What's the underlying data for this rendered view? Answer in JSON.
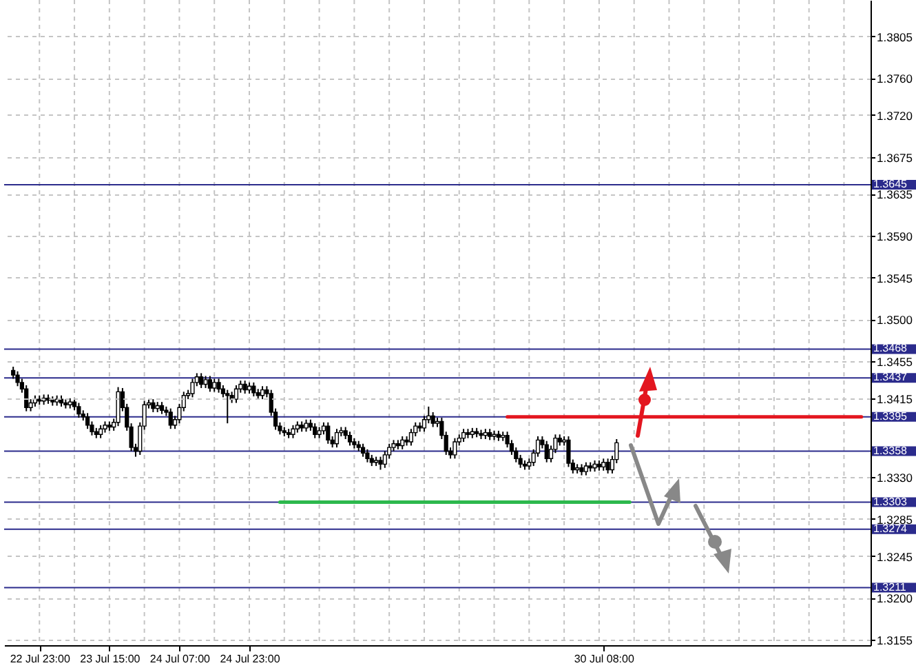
{
  "chart_data": {
    "type": "candlestick",
    "categories": [
      null,
      null,
      null,
      null,
      null,
      null,
      "22 Jul 23:00",
      null,
      null,
      null,
      null,
      null,
      null,
      null,
      null,
      null,
      null,
      null,
      null,
      null,
      null,
      null,
      "23 Jul 15:00",
      null,
      null,
      null,
      null,
      null,
      null,
      null,
      null,
      null,
      null,
      null,
      null,
      null,
      null,
      null,
      "24 Jul 07:00",
      null,
      null,
      null,
      null,
      null,
      null,
      null,
      null,
      null,
      null,
      null,
      null,
      null,
      null,
      null,
      "24 Jul 23:00",
      null,
      null,
      null,
      null,
      null,
      null,
      null,
      null,
      null,
      null,
      null,
      null,
      null,
      null,
      null,
      null,
      null,
      null,
      null,
      null,
      null,
      null,
      null,
      null,
      null,
      null,
      null,
      null,
      null,
      null,
      null,
      null,
      null,
      null,
      null,
      null,
      null,
      null,
      null,
      null,
      null,
      null,
      null,
      null,
      null,
      null,
      null,
      null,
      null,
      null,
      null,
      null,
      null,
      null,
      null,
      null,
      null,
      null,
      null,
      null,
      null,
      null,
      null,
      null,
      null,
      null,
      null,
      null,
      null,
      null,
      null,
      null,
      null,
      null,
      null,
      null,
      null,
      null,
      null,
      null,
      "30 Jul 08:00",
      null,
      null,
      null,
      null,
      null,
      null,
      null,
      null,
      null,
      null,
      null,
      null,
      null,
      null,
      null,
      null,
      null,
      null,
      null,
      null,
      null,
      null,
      null,
      null,
      null,
      null,
      null,
      null,
      null,
      null,
      null,
      null,
      null,
      null,
      null,
      null,
      null,
      null,
      null,
      null,
      null,
      null,
      null,
      null,
      null,
      null,
      null,
      null,
      null,
      null,
      null,
      null,
      null,
      null,
      null,
      null,
      null,
      null,
      null
    ],
    "ohlc": [
      [
        1.3445,
        1.3449,
        1.3436,
        1.344
      ],
      [
        1.344,
        1.3444,
        1.3428,
        1.3432
      ],
      [
        1.3432,
        1.3436,
        1.3421,
        1.3425
      ],
      [
        1.3425,
        1.3429,
        1.3401,
        1.3405
      ],
      [
        1.3405,
        1.3414,
        1.3401,
        1.341
      ],
      [
        1.341,
        1.3418,
        1.3406,
        1.3414
      ],
      [
        1.3414,
        1.3418,
        1.3408,
        1.3412
      ],
      [
        1.3412,
        1.3419,
        1.3408,
        1.3415
      ],
      [
        1.3415,
        1.3419,
        1.3409,
        1.3413
      ],
      [
        1.3413,
        1.3417,
        1.3407,
        1.3411
      ],
      [
        1.3411,
        1.3418,
        1.3407,
        1.3414
      ],
      [
        1.3414,
        1.3418,
        1.3406,
        1.341
      ],
      [
        1.341,
        1.3414,
        1.3404,
        1.3408
      ],
      [
        1.3408,
        1.3415,
        1.3404,
        1.3411
      ],
      [
        1.3411,
        1.3415,
        1.3402,
        1.3406
      ],
      [
        1.3406,
        1.341,
        1.3394,
        1.3398
      ],
      [
        1.3398,
        1.3402,
        1.3391,
        1.3395
      ],
      [
        1.3395,
        1.3399,
        1.3382,
        1.3386
      ],
      [
        1.3386,
        1.339,
        1.3375,
        1.3379
      ],
      [
        1.3379,
        1.3383,
        1.3372,
        1.3376
      ],
      [
        1.3376,
        1.3386,
        1.3372,
        1.3382
      ],
      [
        1.3382,
        1.339,
        1.3378,
        1.3386
      ],
      [
        1.3386,
        1.339,
        1.338,
        1.3384
      ],
      [
        1.3384,
        1.3393,
        1.338,
        1.3389
      ],
      [
        1.3389,
        1.3427,
        1.3385,
        1.3422
      ],
      [
        1.3422,
        1.3426,
        1.3401,
        1.3405
      ],
      [
        1.3405,
        1.3409,
        1.338,
        1.3384
      ],
      [
        1.3384,
        1.3388,
        1.3358,
        1.3362
      ],
      [
        1.3362,
        1.3366,
        1.3352,
        1.3358
      ],
      [
        1.3358,
        1.3389,
        1.3354,
        1.3385
      ],
      [
        1.3385,
        1.3412,
        1.3381,
        1.3408
      ],
      [
        1.3408,
        1.3414,
        1.3404,
        1.341
      ],
      [
        1.341,
        1.3414,
        1.34,
        1.3404
      ],
      [
        1.3404,
        1.3411,
        1.34,
        1.3407
      ],
      [
        1.3407,
        1.3411,
        1.3398,
        1.3402
      ],
      [
        1.3402,
        1.3406,
        1.3396,
        1.34
      ],
      [
        1.34,
        1.3404,
        1.3382,
        1.3386
      ],
      [
        1.3386,
        1.3396,
        1.3382,
        1.3392
      ],
      [
        1.3392,
        1.3409,
        1.3388,
        1.3405
      ],
      [
        1.3405,
        1.3422,
        1.3401,
        1.3418
      ],
      [
        1.3418,
        1.3424,
        1.3414,
        1.342
      ],
      [
        1.342,
        1.3436,
        1.3416,
        1.3432
      ],
      [
        1.3432,
        1.3442,
        1.3428,
        1.3438
      ],
      [
        1.3438,
        1.3442,
        1.3426,
        1.343
      ],
      [
        1.343,
        1.3439,
        1.3426,
        1.3435
      ],
      [
        1.3435,
        1.3439,
        1.3422,
        1.3426
      ],
      [
        1.3426,
        1.3436,
        1.3422,
        1.3432
      ],
      [
        1.3432,
        1.3436,
        1.3421,
        1.3425
      ],
      [
        1.3425,
        1.3429,
        1.3416,
        1.342
      ],
      [
        1.342,
        1.3424,
        1.3388,
        1.3418
      ],
      [
        1.3418,
        1.3422,
        1.341,
        1.3414
      ],
      [
        1.3414,
        1.3429,
        1.341,
        1.3425
      ],
      [
        1.3425,
        1.3434,
        1.3421,
        1.343
      ],
      [
        1.343,
        1.3434,
        1.342,
        1.3424
      ],
      [
        1.3424,
        1.3432,
        1.342,
        1.3428
      ],
      [
        1.3428,
        1.3432,
        1.3417,
        1.3421
      ],
      [
        1.3421,
        1.3425,
        1.3414,
        1.3418
      ],
      [
        1.3418,
        1.3428,
        1.3414,
        1.3424
      ],
      [
        1.3424,
        1.3428,
        1.3416,
        1.342
      ],
      [
        1.342,
        1.3424,
        1.3396,
        1.34
      ],
      [
        1.34,
        1.3404,
        1.3381,
        1.3385
      ],
      [
        1.3385,
        1.3389,
        1.3376,
        1.338
      ],
      [
        1.338,
        1.3384,
        1.3374,
        1.3378
      ],
      [
        1.3378,
        1.3382,
        1.3372,
        1.3376
      ],
      [
        1.3376,
        1.3386,
        1.3372,
        1.3382
      ],
      [
        1.3382,
        1.339,
        1.3378,
        1.3386
      ],
      [
        1.3386,
        1.339,
        1.3379,
        1.3383
      ],
      [
        1.3383,
        1.3392,
        1.3379,
        1.3388
      ],
      [
        1.3388,
        1.3392,
        1.338,
        1.3384
      ],
      [
        1.3384,
        1.3388,
        1.3372,
        1.3376
      ],
      [
        1.3376,
        1.3384,
        1.3372,
        1.338
      ],
      [
        1.338,
        1.3389,
        1.3376,
        1.3385
      ],
      [
        1.3385,
        1.3389,
        1.3366,
        1.337
      ],
      [
        1.337,
        1.3374,
        1.3362,
        1.3366
      ],
      [
        1.3366,
        1.3382,
        1.3362,
        1.3378
      ],
      [
        1.3378,
        1.3384,
        1.3374,
        1.338
      ],
      [
        1.338,
        1.3384,
        1.3371,
        1.3375
      ],
      [
        1.3375,
        1.3379,
        1.3364,
        1.3368
      ],
      [
        1.3368,
        1.3372,
        1.3361,
        1.3365
      ],
      [
        1.3365,
        1.3369,
        1.3358,
        1.3362
      ],
      [
        1.3362,
        1.3366,
        1.3352,
        1.3356
      ],
      [
        1.3356,
        1.336,
        1.3346,
        1.335
      ],
      [
        1.335,
        1.3354,
        1.3342,
        1.3346
      ],
      [
        1.3346,
        1.3352,
        1.3342,
        1.3348
      ],
      [
        1.3348,
        1.3352,
        1.3338,
        1.3344
      ],
      [
        1.3344,
        1.3358,
        1.334,
        1.3354
      ],
      [
        1.3354,
        1.3366,
        1.335,
        1.3362
      ],
      [
        1.3362,
        1.337,
        1.3358,
        1.3366
      ],
      [
        1.3366,
        1.337,
        1.336,
        1.3364
      ],
      [
        1.3364,
        1.3374,
        1.336,
        1.337
      ],
      [
        1.337,
        1.3374,
        1.3364,
        1.3368
      ],
      [
        1.3368,
        1.3382,
        1.3364,
        1.3378
      ],
      [
        1.3378,
        1.3389,
        1.3374,
        1.3385
      ],
      [
        1.3385,
        1.3389,
        1.3379,
        1.3383
      ],
      [
        1.3383,
        1.3396,
        1.3379,
        1.3392
      ],
      [
        1.3392,
        1.3406,
        1.3388,
        1.3396
      ],
      [
        1.3396,
        1.34,
        1.3384,
        1.3388
      ],
      [
        1.3388,
        1.3394,
        1.3384,
        1.339
      ],
      [
        1.339,
        1.3394,
        1.3371,
        1.3375
      ],
      [
        1.3375,
        1.3379,
        1.3354,
        1.3358
      ],
      [
        1.3358,
        1.3362,
        1.335,
        1.3354
      ],
      [
        1.3354,
        1.3372,
        1.335,
        1.3368
      ],
      [
        1.3368,
        1.3376,
        1.3364,
        1.3372
      ],
      [
        1.3372,
        1.3382,
        1.3368,
        1.3378
      ],
      [
        1.3378,
        1.3382,
        1.3372,
        1.3376
      ],
      [
        1.3376,
        1.3383,
        1.3372,
        1.3379
      ],
      [
        1.3379,
        1.3383,
        1.3373,
        1.3377
      ],
      [
        1.3377,
        1.3381,
        1.3371,
        1.3375
      ],
      [
        1.3375,
        1.3382,
        1.3371,
        1.3378
      ],
      [
        1.3378,
        1.3382,
        1.337,
        1.3374
      ],
      [
        1.3374,
        1.338,
        1.337,
        1.3376
      ],
      [
        1.3376,
        1.338,
        1.3369,
        1.3373
      ],
      [
        1.3373,
        1.3379,
        1.3369,
        1.3375
      ],
      [
        1.3375,
        1.3379,
        1.3362,
        1.3366
      ],
      [
        1.3366,
        1.337,
        1.3354,
        1.3358
      ],
      [
        1.3358,
        1.3362,
        1.3346,
        1.335
      ],
      [
        1.335,
        1.3354,
        1.334,
        1.3344
      ],
      [
        1.3344,
        1.3348,
        1.3338,
        1.3342
      ],
      [
        1.3342,
        1.335,
        1.3338,
        1.3346
      ],
      [
        1.3346,
        1.336,
        1.3342,
        1.3356
      ],
      [
        1.3356,
        1.3374,
        1.3352,
        1.337
      ],
      [
        1.337,
        1.3374,
        1.3361,
        1.3365
      ],
      [
        1.3365,
        1.3369,
        1.3346,
        1.335
      ],
      [
        1.335,
        1.3364,
        1.3346,
        1.336
      ],
      [
        1.336,
        1.3376,
        1.3356,
        1.3372
      ],
      [
        1.3372,
        1.3376,
        1.3364,
        1.3368
      ],
      [
        1.3368,
        1.3374,
        1.3364,
        1.337
      ],
      [
        1.337,
        1.3374,
        1.3341,
        1.3345
      ],
      [
        1.3345,
        1.3349,
        1.3334,
        1.3338
      ],
      [
        1.3338,
        1.3344,
        1.3334,
        1.334
      ],
      [
        1.334,
        1.3344,
        1.3332,
        1.3336
      ],
      [
        1.3336,
        1.3346,
        1.3332,
        1.3342
      ],
      [
        1.3342,
        1.3346,
        1.3336,
        1.334
      ],
      [
        1.334,
        1.3348,
        1.3336,
        1.3344
      ],
      [
        1.3344,
        1.3348,
        1.3337,
        1.3341
      ],
      [
        1.3341,
        1.335,
        1.3337,
        1.3346
      ],
      [
        1.3346,
        1.335,
        1.3334,
        1.3338
      ],
      [
        1.3338,
        1.3353,
        1.3334,
        1.3349
      ],
      [
        1.3349,
        1.3371,
        1.3345,
        1.3367
      ],
      null,
      null,
      null,
      null,
      null,
      null,
      null,
      null,
      null,
      null,
      null,
      null,
      null,
      null,
      null,
      null,
      null,
      null,
      null,
      null,
      null,
      null,
      null,
      null,
      null,
      null,
      null,
      null,
      null,
      null,
      null,
      null,
      null,
      null,
      null,
      null,
      null,
      null,
      null,
      null,
      null,
      null,
      null,
      null,
      null,
      null,
      null,
      null,
      null,
      null,
      null,
      null,
      null,
      null,
      null,
      null
    ],
    "series": [
      {
        "type": "line",
        "color": "#2db84d",
        "values": [
          null,
          null,
          null,
          null,
          null,
          null,
          null,
          null,
          null,
          null,
          null,
          null,
          null,
          null,
          null,
          null,
          null,
          null,
          null,
          null,
          null,
          null,
          null,
          null,
          null,
          null,
          null,
          null,
          null,
          null,
          null,
          null,
          null,
          null,
          null,
          null,
          null,
          null,
          null,
          null,
          null,
          null,
          null,
          null,
          null,
          null,
          null,
          null,
          null,
          null,
          null,
          null,
          null,
          null,
          null,
          null,
          null,
          null,
          null,
          null,
          null,
          1.3303,
          1.3303,
          1.3303,
          1.3303,
          1.3303,
          1.3303,
          1.3303,
          1.3303,
          1.3303,
          1.3303,
          1.3303,
          1.3303,
          1.3303,
          1.3303,
          1.3303,
          1.3303,
          1.3303,
          1.3303,
          1.3303,
          1.3303,
          1.3303,
          1.3303,
          1.3303,
          1.3303,
          1.3303,
          1.3303,
          1.3303,
          1.3303,
          1.3303,
          1.3303,
          1.3303,
          1.3303,
          1.3303,
          1.3303,
          1.3303,
          1.3303,
          1.3303,
          1.3303,
          1.3303,
          1.3303,
          1.3303,
          1.3303,
          1.3303,
          1.3303,
          1.3303,
          1.3303,
          1.3303,
          1.3303,
          1.3303,
          1.3303,
          1.3303,
          1.3303,
          1.3303,
          1.3303,
          1.3303,
          1.3303,
          1.3303,
          1.3303,
          1.3303,
          1.3303,
          1.3303,
          1.3303,
          1.3303,
          1.3303,
          1.3303,
          1.3303,
          1.3303,
          1.3303,
          1.3303,
          1.3303,
          1.3303,
          1.3303,
          1.3303,
          1.3303,
          1.3303,
          1.3303,
          1.3303,
          1.3303,
          1.3303,
          1.3303,
          1.3303,
          null,
          null,
          null,
          null,
          null,
          null,
          null,
          null,
          null,
          null,
          null,
          null,
          null,
          null,
          null,
          null,
          null,
          null,
          null,
          null,
          null,
          null,
          null,
          null,
          null,
          null,
          null,
          null,
          null,
          null,
          null,
          null,
          null,
          null,
          null,
          null,
          null,
          null,
          null,
          null,
          null,
          null,
          null,
          null,
          null,
          null,
          null,
          null,
          null,
          null,
          null,
          null,
          null
        ]
      },
      {
        "type": "line",
        "color": "#e3161f",
        "values": [
          null,
          null,
          null,
          null,
          null,
          null,
          null,
          null,
          null,
          null,
          null,
          null,
          null,
          null,
          null,
          null,
          null,
          null,
          null,
          null,
          null,
          null,
          null,
          null,
          null,
          null,
          null,
          null,
          null,
          null,
          null,
          null,
          null,
          null,
          null,
          null,
          null,
          null,
          null,
          null,
          null,
          null,
          null,
          null,
          null,
          null,
          null,
          null,
          null,
          null,
          null,
          null,
          null,
          null,
          null,
          null,
          null,
          null,
          null,
          null,
          null,
          null,
          null,
          null,
          null,
          null,
          null,
          null,
          null,
          null,
          null,
          null,
          null,
          null,
          null,
          null,
          null,
          null,
          null,
          null,
          null,
          null,
          null,
          null,
          null,
          null,
          null,
          null,
          null,
          null,
          null,
          null,
          null,
          null,
          null,
          null,
          null,
          null,
          null,
          null,
          null,
          null,
          null,
          null,
          null,
          null,
          null,
          null,
          null,
          null,
          null,
          null,
          null,
          1.3395,
          1.3395,
          1.3395,
          1.3395,
          1.3395,
          1.3395,
          1.3395,
          1.3395,
          1.3395,
          1.3395,
          1.3395,
          1.3395,
          1.3395,
          1.3395,
          1.3395,
          1.3395,
          1.3395,
          1.3395,
          1.3395,
          1.3395,
          1.3395,
          1.3395,
          1.3395,
          1.3395,
          1.3395,
          1.3395,
          1.3395,
          1.3395,
          1.3395,
          1.3395,
          1.3395,
          1.3395,
          1.3395,
          1.3395,
          1.3395,
          1.3395,
          1.3395,
          1.3395,
          1.3395,
          1.3395,
          1.3395,
          1.3395,
          1.3395,
          1.3395,
          1.3395,
          1.3395,
          1.3395,
          1.3395,
          1.3395,
          1.3395,
          1.3395,
          1.3395,
          1.3395,
          1.3395,
          1.3395,
          1.3395,
          1.3395,
          1.3395,
          1.3395,
          1.3395,
          1.3395,
          1.3395,
          1.3395,
          1.3395,
          1.3395,
          1.3395,
          1.3395,
          1.3395,
          1.3395,
          1.3395,
          1.3395,
          1.3395,
          1.3395,
          1.3395,
          1.3395,
          1.3395,
          1.3395,
          1.3395,
          1.3395,
          1.3395,
          1.3395,
          1.3395
        ]
      }
    ],
    "ref_lines": [
      {
        "axis": "y",
        "value": 1.3645,
        "label": "1.3645",
        "color": "#2b2b8c"
      },
      {
        "axis": "y",
        "value": 1.3468,
        "label": "1.3468",
        "color": "#2b2b8c"
      },
      {
        "axis": "y",
        "value": 1.3437,
        "label": "1.3437",
        "color": "#2b2b8c"
      },
      {
        "axis": "y",
        "value": 1.3395,
        "label": "1.3395",
        "color": "#2b2b8c"
      },
      {
        "axis": "y",
        "value": 1.3358,
        "label": "1.3358",
        "color": "#2b2b8c"
      },
      {
        "axis": "y",
        "value": 1.3303,
        "label": "1.3303",
        "color": "#2b2b8c"
      },
      {
        "axis": "y",
        "value": 1.3274,
        "label": "1.3274",
        "color": "#2b2b8c"
      },
      {
        "axis": "y",
        "value": 1.3211,
        "label": "1.3211",
        "color": "#2b2b8c"
      }
    ],
    "ylim": [
      1.3149,
      1.3844
    ],
    "yticks": [
      1.3805,
      {
        "value": 1.376,
        "label": "1.3760"
      },
      {
        "value": 1.372,
        "label": "1.3720"
      },
      1.3675,
      1.3635,
      {
        "value": 1.359,
        "label": "1.3590"
      },
      1.3545,
      {
        "value": 1.35,
        "label": "1.3500"
      },
      1.3455,
      1.3415,
      {
        "value": 1.333,
        "label": "1.3330"
      },
      1.3285,
      1.3245,
      {
        "value": 1.32,
        "label": "1.3200"
      },
      1.3155
    ],
    "grid": true
  }
}
